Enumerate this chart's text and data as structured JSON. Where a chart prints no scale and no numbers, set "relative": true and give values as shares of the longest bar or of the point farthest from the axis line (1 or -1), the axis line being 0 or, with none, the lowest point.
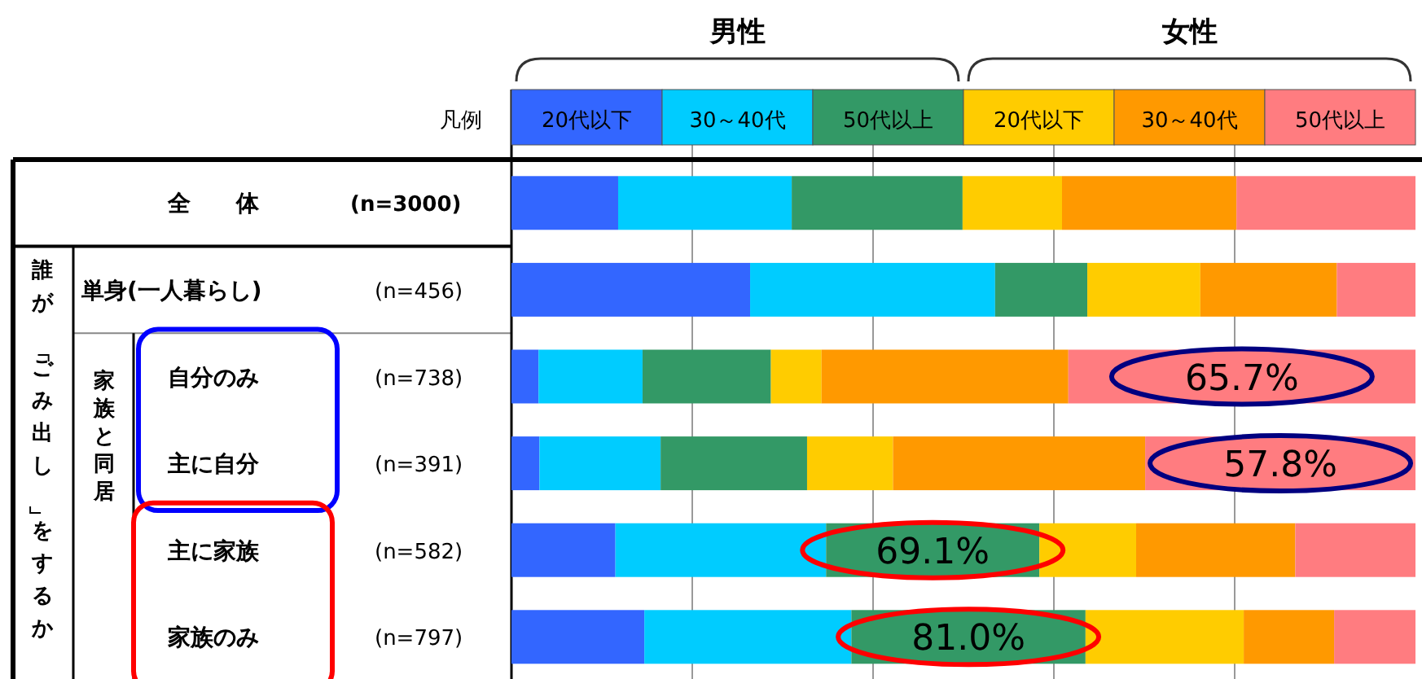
{
  "chart_data": {
    "type": "bar",
    "orientation": "horizontal",
    "stacked": true,
    "relative": true,
    "grid": "x",
    "legend": "top",
    "legend_title": "凡例",
    "categories": [
      "全　　体",
      "単身(一人暮らし)",
      "自分のみ",
      "主に自分",
      "主に家族",
      "家族のみ"
    ],
    "series": [
      {
        "name": "20代以下",
        "color": "#3366ff",
        "values": [
          0.118,
          0.264,
          0.03,
          0.031,
          0.115,
          0.147
        ]
      },
      {
        "name": "30～40代",
        "color": "#00ccff",
        "values": [
          0.192,
          0.271,
          0.115,
          0.134,
          0.233,
          0.229
        ]
      },
      {
        "name": "50代以上",
        "color": "#339966",
        "values": [
          0.189,
          0.102,
          0.142,
          0.162,
          0.236,
          0.259
        ]
      },
      {
        "name": "20代以下",
        "color": "#ffcc00",
        "values": [
          0.11,
          0.125,
          0.056,
          0.095,
          0.107,
          0.175
        ]
      },
      {
        "name": "30～40代",
        "color": "#ff9900",
        "values": [
          0.193,
          0.151,
          0.273,
          0.279,
          0.176,
          0.1
        ]
      },
      {
        "name": "50代以上",
        "color": "#ff7c80",
        "values": [
          0.198,
          0.087,
          0.384,
          0.299,
          0.133,
          0.09
        ]
      }
    ],
    "annotations": [
      "男性",
      "女性",
      "誰が「ごみ出し」をするか",
      "家族と同居",
      "(n=3000)",
      "(n=456)",
      "(n=738)",
      "(n=391)",
      "(n=582)",
      "(n=797)",
      "65.7%",
      "57.8%",
      "69.1%",
      "81.0%"
    ]
  }
}
